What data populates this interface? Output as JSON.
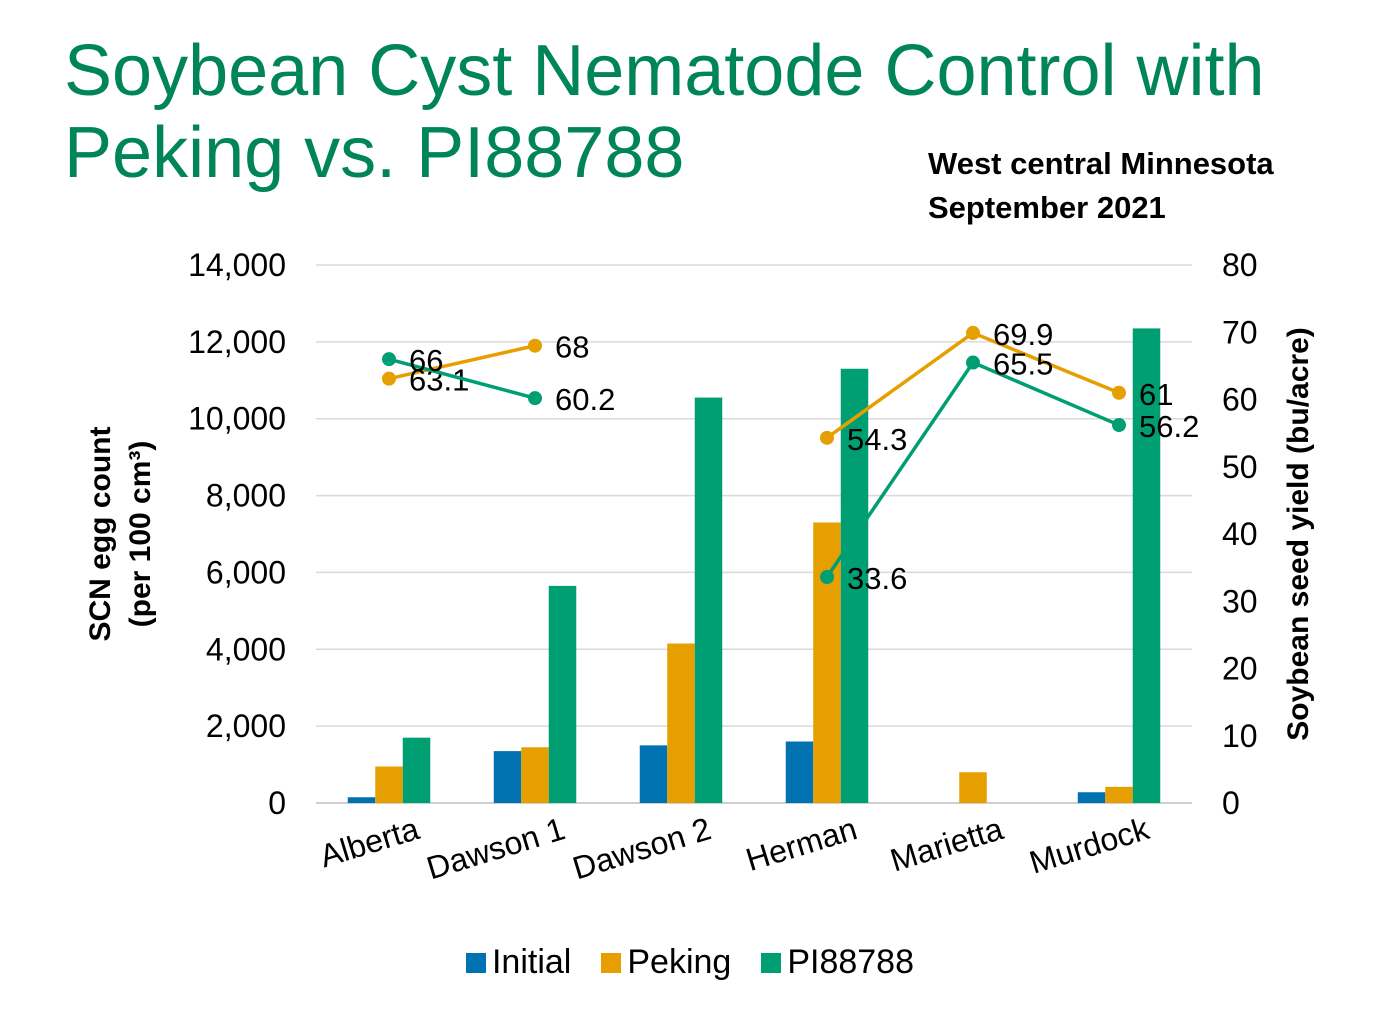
{
  "title": "Soybean Cyst Nematode Control with Peking vs. PI88788",
  "subtitle": [
    "West central Minnesota",
    "September 2021"
  ],
  "chart_data": {
    "type": "bar",
    "categories": [
      "Alberta",
      "Dawson 1",
      "Dawson 2",
      "Herman",
      "Marietta",
      "Murdock"
    ],
    "series": [
      {
        "name": "Initial",
        "type": "bar",
        "axis": "left",
        "color": "#0072b2",
        "values": [
          150,
          1350,
          1500,
          1600,
          0,
          280
        ]
      },
      {
        "name": "Peking",
        "type": "bar",
        "axis": "left",
        "color": "#e69f00",
        "values": [
          950,
          1450,
          4150,
          7300,
          800,
          420
        ]
      },
      {
        "name": "PI88788",
        "type": "bar",
        "axis": "left",
        "color": "#009e73",
        "values": [
          1700,
          5650,
          10550,
          11300,
          0,
          12350
        ]
      }
    ],
    "line_series": [
      {
        "name": "Peking",
        "axis": "right",
        "color": "#e69f00",
        "values": [
          63.1,
          68,
          null,
          54.3,
          69.9,
          61
        ],
        "labels": [
          "63.1",
          "68",
          "",
          "54.3",
          "69.9",
          "61"
        ]
      },
      {
        "name": "PI88788",
        "axis": "right",
        "color": "#009e73",
        "values": [
          66,
          60.2,
          null,
          33.6,
          65.5,
          56.2
        ],
        "labels": [
          "66",
          "60.2",
          "",
          "33.6",
          "65.5",
          "56.2"
        ]
      }
    ],
    "ylabel_line1": "SCN egg count",
    "ylabel_line2": "(per 100 cm³)",
    "y2label": "Soybean seed yield (bu/acre)",
    "ylim": [
      0,
      14000
    ],
    "y2lim": [
      0,
      80
    ],
    "yticks": [
      "0",
      "2,000",
      "4,000",
      "6,000",
      "8,000",
      "10,000",
      "12,000",
      "14,000"
    ],
    "y2ticks": [
      "0",
      "10",
      "20",
      "30",
      "40",
      "50",
      "60",
      "70",
      "80"
    ],
    "grid": true,
    "legend_position": "bottom"
  },
  "legend": [
    {
      "label": "Initial",
      "color": "#0072b2"
    },
    {
      "label": "Peking",
      "color": "#e69f00"
    },
    {
      "label": "PI88788",
      "color": "#009e73"
    }
  ]
}
